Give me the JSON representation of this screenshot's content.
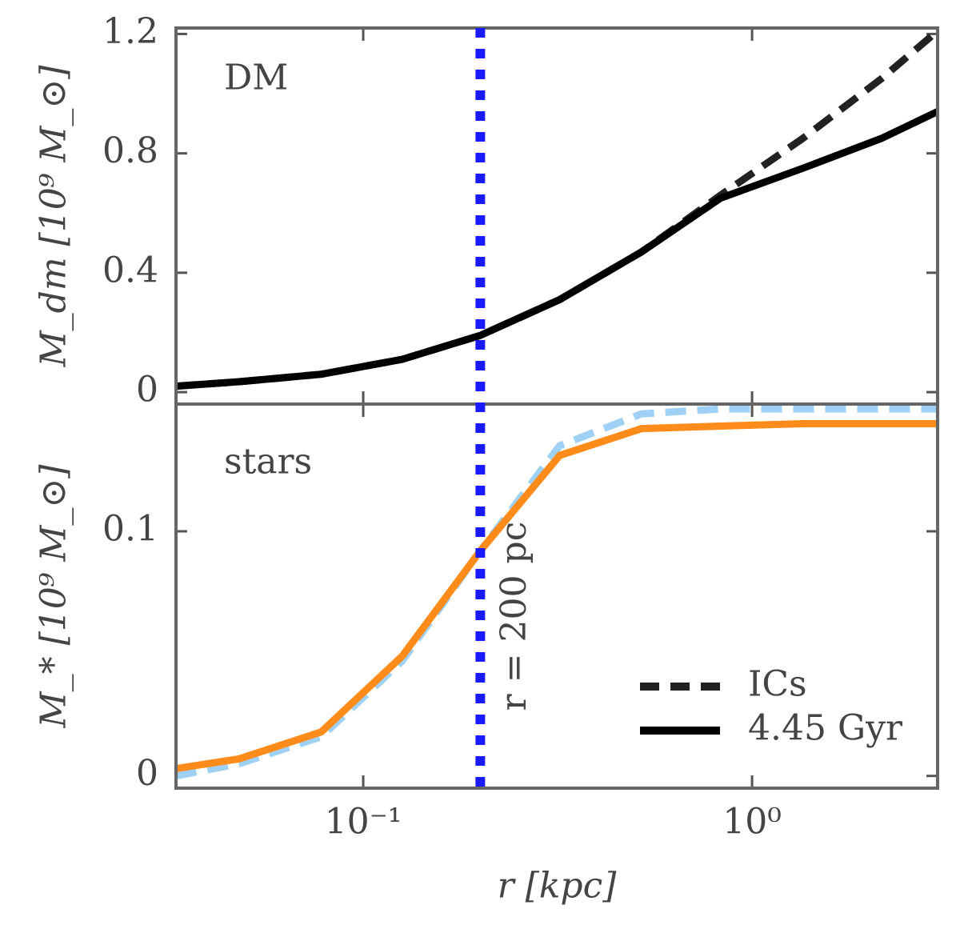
{
  "chart_data": [
    {
      "type": "line",
      "panel_label": "DM",
      "ylabel": "M_dm [10⁹ M_⊙]",
      "xscale": "log",
      "xlim": [
        0.033,
        3.0
      ],
      "x": [
        0.033,
        0.048,
        0.078,
        0.126,
        0.2,
        0.32,
        0.52,
        0.83,
        1.35,
        2.15,
        3.0
      ],
      "ylim": [
        -0.04,
        1.22
      ],
      "yticks": [
        0,
        0.4,
        0.8,
        1.2
      ],
      "series": [
        {
          "name": "ICs",
          "color": "#222222",
          "dash": true,
          "values": [
            0.02,
            0.035,
            0.06,
            0.11,
            0.19,
            0.31,
            0.47,
            0.66,
            0.85,
            1.05,
            1.21
          ]
        },
        {
          "name": "4.45 Gyr",
          "color": "#000000",
          "dash": false,
          "values": [
            0.02,
            0.035,
            0.06,
            0.11,
            0.19,
            0.31,
            0.47,
            0.65,
            0.75,
            0.85,
            0.94
          ]
        }
      ]
    },
    {
      "type": "line",
      "panel_label": "stars",
      "ylabel": "M_* [10⁹ M_⊙]",
      "xlabel": "r [kpc]",
      "xscale": "log",
      "xlim": [
        0.033,
        3.0
      ],
      "xticks": [
        {
          "value": 0.1,
          "label": "10⁻¹"
        },
        {
          "value": 1,
          "label": "10⁰"
        }
      ],
      "x": [
        0.033,
        0.048,
        0.078,
        0.126,
        0.2,
        0.32,
        0.52,
        0.83,
        1.35,
        2.15,
        3.0
      ],
      "ylim": [
        -0.005,
        0.152
      ],
      "yticks": [
        0,
        0.1
      ],
      "vline": 0.2,
      "vline_label": "r = 200 pc",
      "vline_color": "#1a1aff",
      "legend": "lower right",
      "series": [
        {
          "name": "ICs",
          "color": "#9fd0f5",
          "dash": true,
          "values": [
            0.0,
            0.005,
            0.016,
            0.047,
            0.092,
            0.135,
            0.148,
            0.15,
            0.15,
            0.15,
            0.15
          ]
        },
        {
          "name": "4.45 Gyr",
          "color": "#ff8c1a",
          "dash": false,
          "values": [
            0.003,
            0.007,
            0.018,
            0.049,
            0.092,
            0.131,
            0.142,
            0.143,
            0.144,
            0.144,
            0.144
          ]
        }
      ]
    }
  ]
}
